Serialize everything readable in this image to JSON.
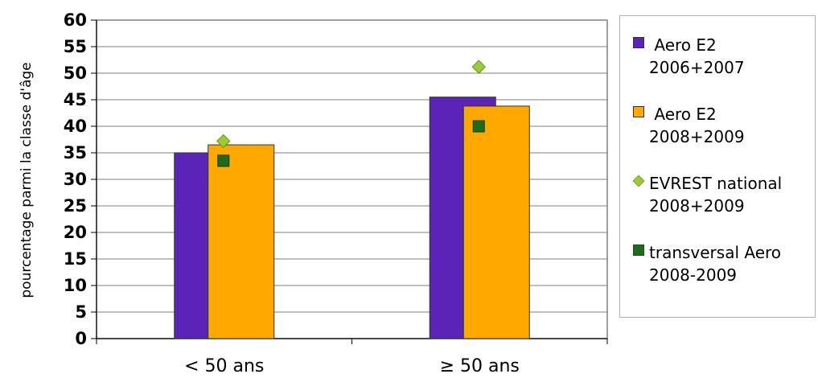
{
  "chart_data": {
    "type": "bar",
    "ylabel": "pourcentage parmi la classe d'âge",
    "xlabel": "",
    "ylim": [
      0,
      60
    ],
    "y_ticks": [
      0,
      5,
      10,
      15,
      20,
      25,
      30,
      35,
      40,
      45,
      50,
      55,
      60
    ],
    "grid": true,
    "legend_position": "right",
    "categories": [
      "< 50 ans",
      "≥ 50 ans"
    ],
    "series": [
      {
        "name": "Aero E2 2006+2007",
        "legend_lines": [
          "Aero E2",
          "2006+2007"
        ],
        "kind": "bar",
        "values": [
          35,
          45.5
        ],
        "color": "#5b23b8"
      },
      {
        "name": "Aero E2 2008+2009",
        "legend_lines": [
          "Aero E2",
          "2008+2009"
        ],
        "kind": "bar",
        "values": [
          36.5,
          43.8
        ],
        "color": "#ffa800"
      },
      {
        "name": "EVREST national 2008+2009",
        "legend_lines": [
          "EVREST national",
          "2008+2009"
        ],
        "kind": "diamond",
        "values": [
          37.2,
          51.2
        ],
        "color": "#9acd32"
      },
      {
        "name": "transversal Aero 2008-2009",
        "legend_lines": [
          "transversal Aero",
          "2008-2009"
        ],
        "kind": "square",
        "values": [
          33.5,
          40
        ],
        "color": "#1e6b1e"
      }
    ]
  }
}
